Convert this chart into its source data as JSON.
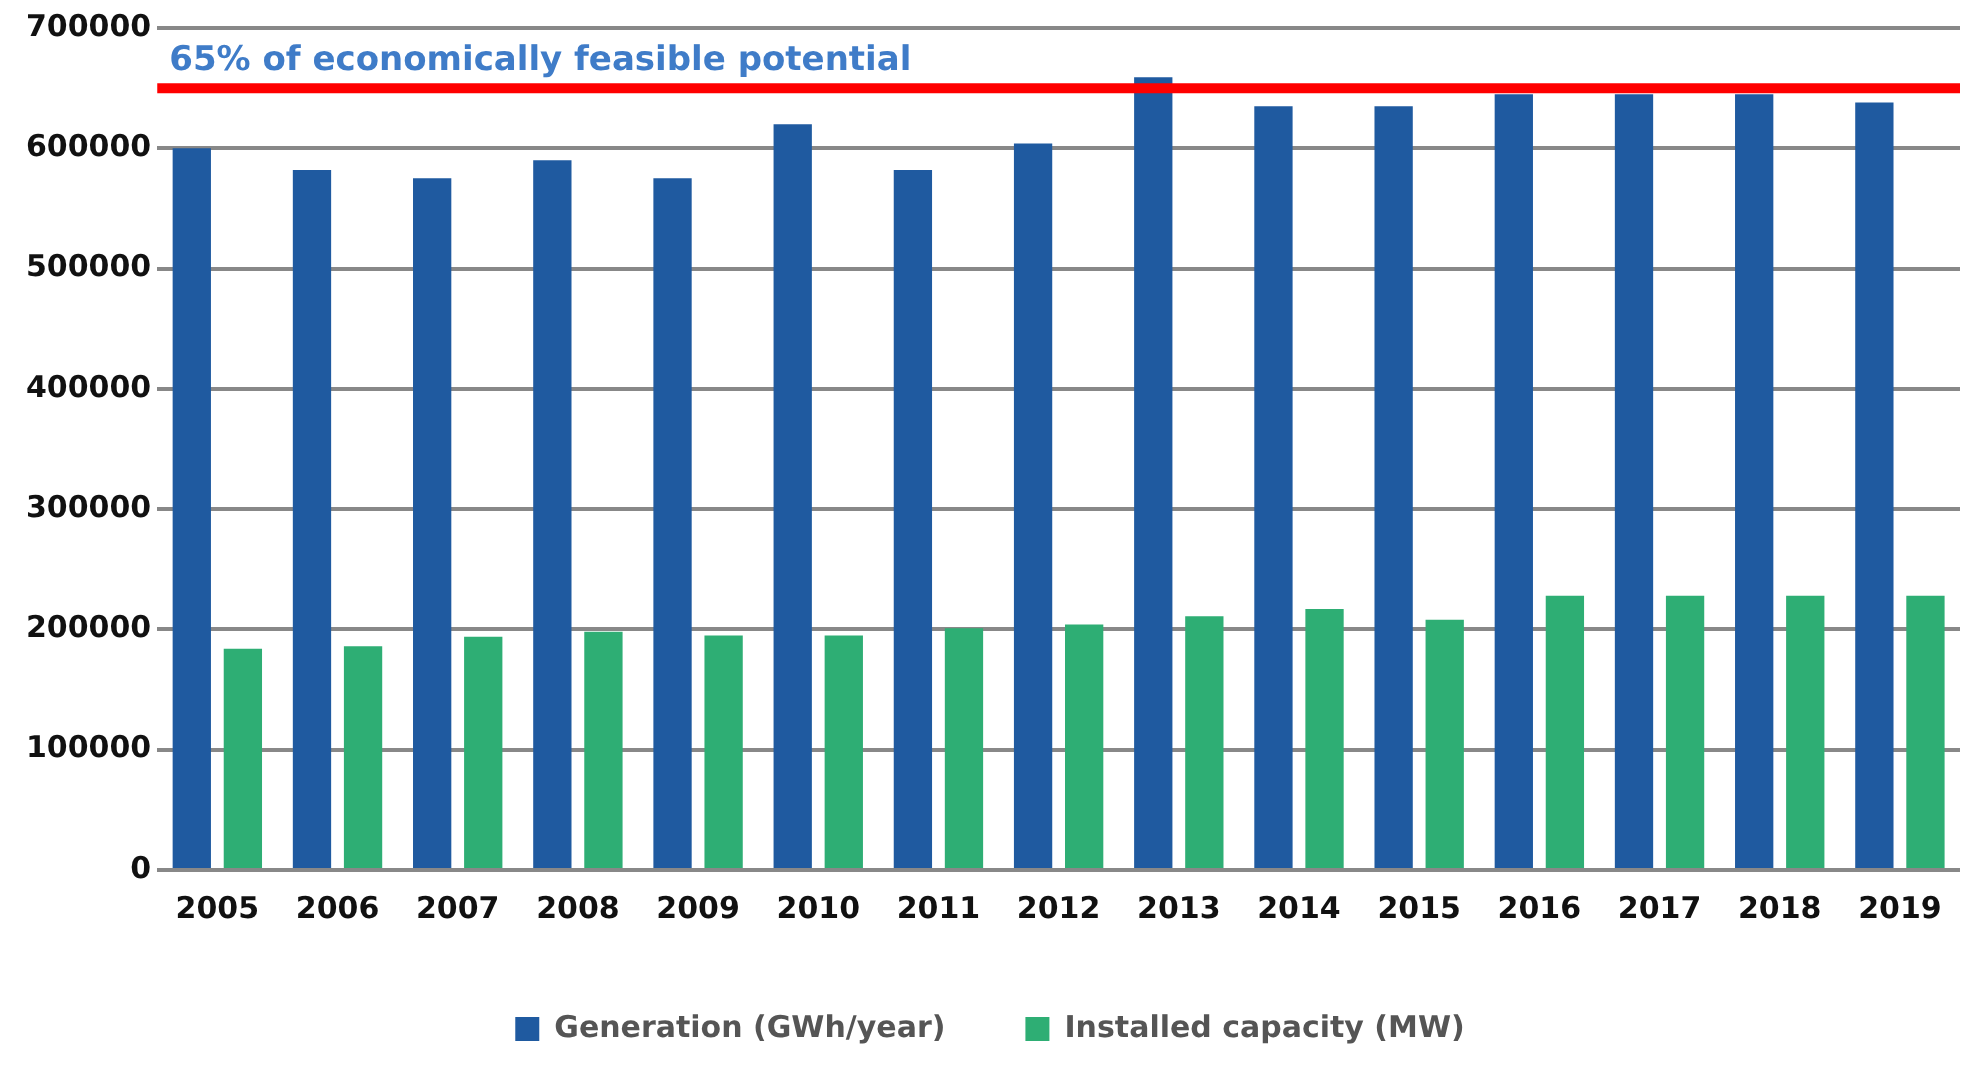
{
  "chart_data": {
    "type": "bar",
    "categories": [
      "2005",
      "2006",
      "2007",
      "2008",
      "2009",
      "2010",
      "2011",
      "2012",
      "2013",
      "2014",
      "2015",
      "2016",
      "2017",
      "2018",
      "2019"
    ],
    "series": [
      {
        "name": "Generation (GWh/year)",
        "color": "#1f5aa0",
        "values": [
          600000,
          582000,
          575000,
          590000,
          575000,
          620000,
          582000,
          604000,
          659000,
          635000,
          635000,
          645000,
          645000,
          645000,
          638000
        ]
      },
      {
        "name": "Installed capacity (MW)",
        "color": "#2eae74",
        "values": [
          184000,
          186000,
          194000,
          198000,
          195000,
          195000,
          201000,
          204000,
          211000,
          217000,
          208000,
          228000,
          228000,
          228000,
          228000
        ]
      }
    ],
    "ylim": [
      0,
      700000
    ],
    "yticks": [
      0,
      100000,
      200000,
      300000,
      400000,
      500000,
      600000,
      700000
    ],
    "grid": "y",
    "legend": "bottom",
    "ref_lines": [
      {
        "axis": "y",
        "value": 650000,
        "label": "65% of economically feasible potential",
        "color": "#ff0000"
      }
    ]
  }
}
